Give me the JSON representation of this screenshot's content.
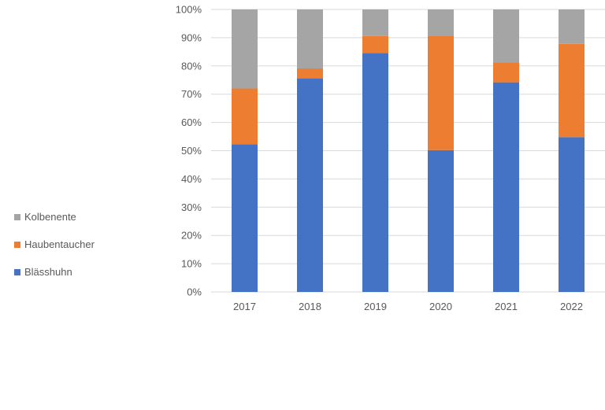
{
  "chart_data": {
    "type": "bar",
    "stacked": true,
    "categories": [
      "2017",
      "2018",
      "2019",
      "2020",
      "2021",
      "2022"
    ],
    "series": [
      {
        "name": "Blässhuhn",
        "color": "#4472C4",
        "values": [
          52.3,
          75.6,
          84.6,
          50.2,
          74.2,
          54.8
        ]
      },
      {
        "name": "Haubentaucher",
        "color": "#ED7D31",
        "values": [
          19.7,
          3.5,
          6.0,
          40.5,
          7.1,
          33.0
        ]
      },
      {
        "name": "Kolbenente",
        "color": "#A5A5A5",
        "values": [
          28.0,
          20.9,
          9.4,
          9.3,
          18.7,
          12.2
        ]
      }
    ],
    "ylim": [
      0,
      100
    ],
    "y_ticks": [
      "0%",
      "10%",
      "20%",
      "30%",
      "40%",
      "50%",
      "60%",
      "70%",
      "80%",
      "90%",
      "100%"
    ],
    "grid": true,
    "legend_position": "left",
    "title": "",
    "xlabel": "",
    "ylabel": ""
  },
  "legend": {
    "items": [
      {
        "label": "Kolbenente",
        "color": "#A5A5A5"
      },
      {
        "label": "Haubentaucher",
        "color": "#ED7D31"
      },
      {
        "label": "Blässhuhn",
        "color": "#4472C4"
      }
    ]
  }
}
